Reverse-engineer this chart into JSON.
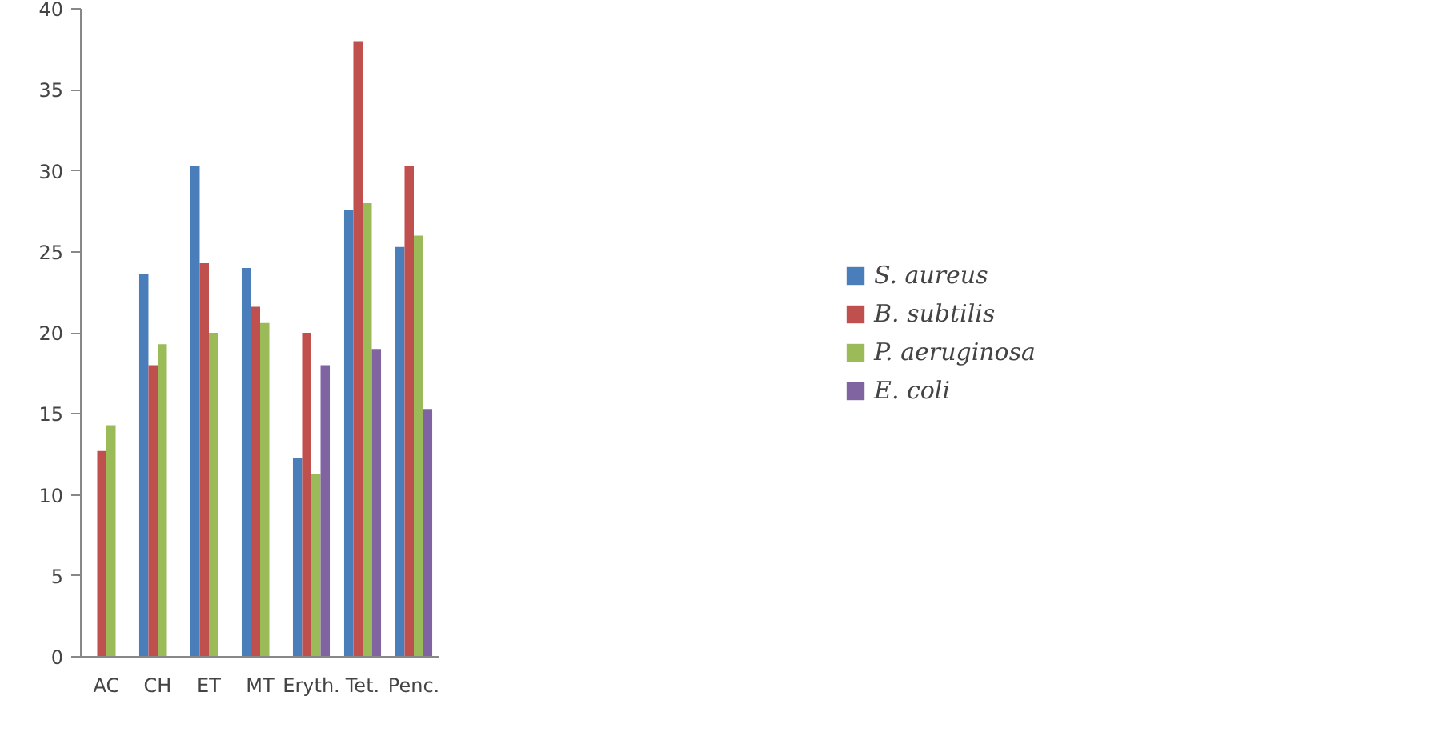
{
  "chart_data": {
    "type": "bar",
    "categories": [
      "AC",
      "CH",
      "ET",
      "MT",
      "Eryth.",
      "Tet.",
      "Penc."
    ],
    "series": [
      {
        "name": "S. aureus",
        "color": "#4a7ebb",
        "values": [
          null,
          23.6,
          30.3,
          24,
          12.3,
          27.6,
          25.3
        ]
      },
      {
        "name": "B. subtilis",
        "color": "#c0504d",
        "values": [
          12.7,
          18,
          24.3,
          21.6,
          20,
          38,
          30.3
        ]
      },
      {
        "name": "P. aeruginosa",
        "color": "#9bbb59",
        "values": [
          14.3,
          19.3,
          20,
          20.6,
          11.3,
          28,
          26
        ]
      },
      {
        "name": "E. coli",
        "color": "#8064a2",
        "values": [
          null,
          null,
          null,
          null,
          18,
          19,
          15.3
        ]
      }
    ],
    "ylim": [
      0,
      40
    ],
    "yticks": [
      0,
      5,
      10,
      15,
      20,
      25,
      30,
      35,
      40
    ],
    "grid": false,
    "legend": "right"
  }
}
